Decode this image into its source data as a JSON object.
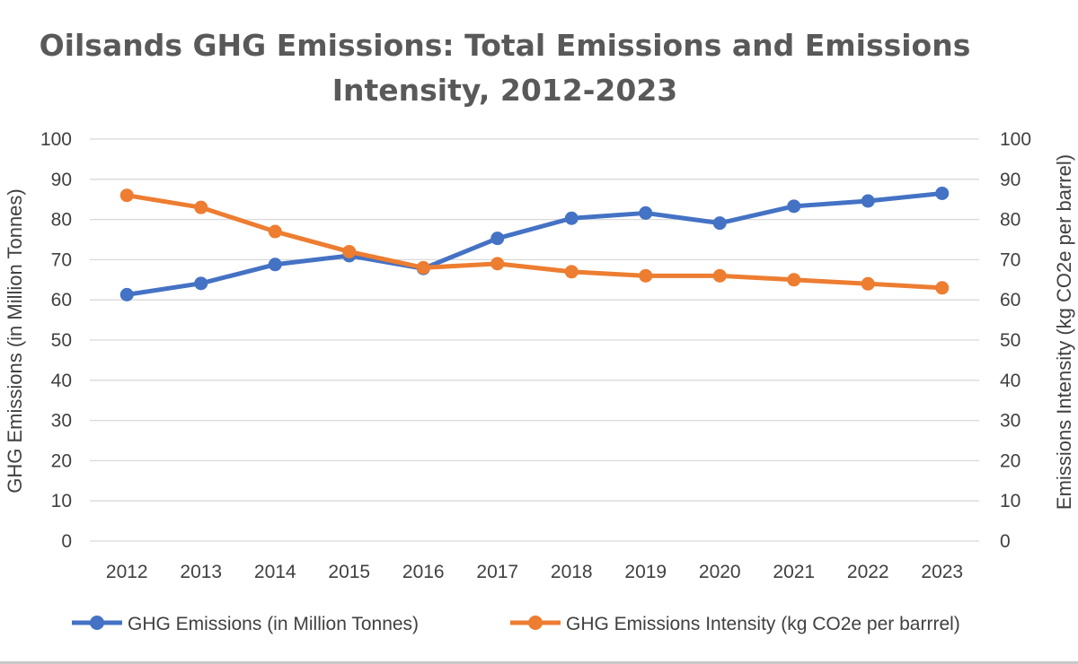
{
  "chart_data": {
    "type": "line",
    "title": [
      "Oilsands GHG Emissions: Total Emissions and Emissions",
      "Intensity, 2012-2023"
    ],
    "categories": [
      "2012",
      "2013",
      "2014",
      "2015",
      "2016",
      "2017",
      "2018",
      "2019",
      "2020",
      "2021",
      "2022",
      "2023"
    ],
    "series": [
      {
        "name": "GHG Emissions (in Million Tonnes)",
        "axis": "left",
        "color": "#4472c4",
        "values": [
          61.3,
          64.1,
          68.8,
          71.0,
          67.8,
          75.3,
          80.3,
          81.6,
          79.1,
          83.3,
          84.6,
          86.5
        ]
      },
      {
        "name": "GHG Emissions Intensity (kg CO2e per barrrel)",
        "axis": "right",
        "color": "#ed7d31",
        "values": [
          86,
          83,
          77,
          72,
          68,
          69,
          67,
          66,
          66,
          65,
          64,
          63
        ]
      }
    ],
    "ylabel_left": "GHG Emissions (in Million Tonnes)",
    "ylabel_right": "Emissions Intensity (kg  CO2e per barrel)",
    "ylim_left": [
      0,
      100
    ],
    "ylim_right": [
      0,
      100
    ],
    "yticks": [
      "0",
      "10",
      "20",
      "30",
      "40",
      "50",
      "60",
      "70",
      "80",
      "90",
      "100"
    ],
    "grid": true,
    "legend_position": "bottom"
  }
}
